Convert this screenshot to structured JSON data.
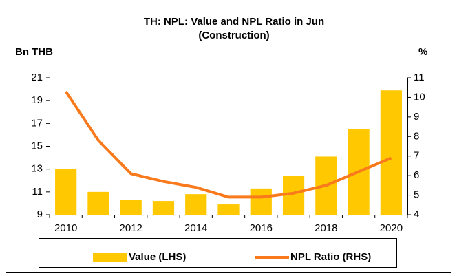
{
  "chart_data": {
    "type": "bar-line",
    "title": "TH: NPL: Value and NPL Ratio in Jun",
    "subtitle": "(Construction)",
    "y_label": "Bn THB",
    "y2_label": "%",
    "categories": [
      "2010",
      null,
      "2012",
      null,
      "2014",
      null,
      "2016",
      null,
      "2018",
      null,
      "2020"
    ],
    "series": [
      {
        "name": "Value (LHS)",
        "type": "bar",
        "color": "#ffc800",
        "values": [
          13.0,
          11.0,
          10.3,
          10.2,
          10.8,
          9.9,
          11.3,
          12.4,
          14.1,
          16.5,
          19.9
        ]
      },
      {
        "name": "NPL Ratio (RHS)",
        "type": "line",
        "axis": "y2",
        "color": "#f97a1c",
        "values": [
          10.3,
          7.8,
          6.1,
          5.7,
          5.4,
          4.9,
          4.9,
          5.1,
          5.5,
          6.2,
          6.9
        ]
      }
    ],
    "ylim": [
      9,
      21
    ],
    "yticks": [
      9,
      11,
      13,
      15,
      17,
      19,
      21
    ],
    "y2lim": [
      4,
      11
    ],
    "y2ticks": [
      4,
      5,
      6,
      7,
      8,
      9,
      10,
      11
    ],
    "legend": "bottom"
  }
}
